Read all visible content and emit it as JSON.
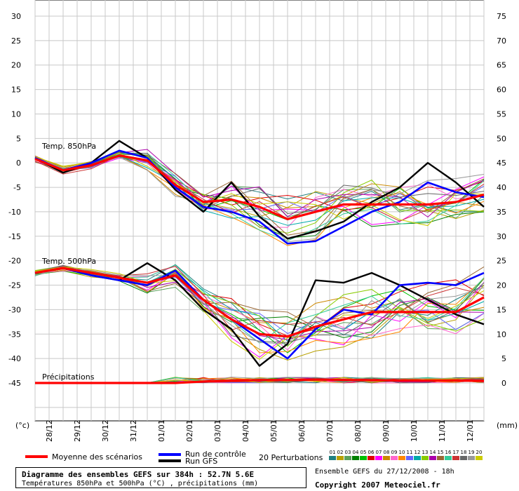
{
  "chart_data": {
    "type": "line",
    "x_labels": [
      "28/12",
      "29/12",
      "30/12",
      "31/12",
      "01/01",
      "02/01",
      "03/01",
      "04/01",
      "05/01",
      "06/01",
      "07/01",
      "08/01",
      "09/01",
      "10/01",
      "11/01",
      "12/01"
    ],
    "y_left_ticks": [
      30,
      25,
      20,
      15,
      10,
      5,
      0,
      -5,
      -10,
      -15,
      -20,
      -25,
      -30,
      -35,
      -40,
      -45
    ],
    "y_right_ticks": [
      75,
      70,
      65,
      60,
      55,
      50,
      45,
      40,
      35,
      30,
      25,
      20,
      15,
      10,
      5,
      0
    ],
    "y_left_unit": "(°c)",
    "y_right_unit": "(mm)",
    "section_labels": {
      "t850": "Temp. 850hPa",
      "t500": "Temp. 500hPa",
      "precip": "Précipitations"
    },
    "series": [
      {
        "name": "Moyenne des scénarios",
        "panel": "t850",
        "x": [
          0,
          1,
          2,
          3,
          4,
          5,
          6,
          7,
          8,
          9,
          10,
          11,
          12,
          13,
          14,
          15,
          16
        ],
        "values": [
          0.8,
          -1.5,
          -0.5,
          1.5,
          0.5,
          -4.5,
          -8,
          -7.5,
          -9,
          -11.5,
          -10,
          -8.5,
          -8.5,
          -8.5,
          -8.5,
          -8,
          -6.5
        ]
      },
      {
        "name": "Run de contrôle",
        "panel": "t850",
        "x": [
          0,
          1,
          2,
          3,
          4,
          5,
          6,
          7,
          8,
          9,
          10,
          11,
          12,
          13,
          14,
          15,
          16
        ],
        "values": [
          1,
          -1.5,
          0,
          2.5,
          1,
          -5,
          -9,
          -10,
          -12,
          -16.5,
          -16,
          -13,
          -10,
          -8,
          -4,
          -6,
          -7
        ]
      },
      {
        "name": "Run GFS",
        "panel": "t850",
        "x": [
          0,
          1,
          2,
          3,
          4,
          5,
          6,
          7,
          8,
          9,
          10,
          11,
          12,
          13,
          14,
          15,
          16
        ],
        "values": [
          1,
          -2,
          0,
          4.5,
          1,
          -5.5,
          -10,
          -4,
          -11,
          -15.5,
          -14,
          -12,
          -8,
          -5,
          0,
          -4,
          -9
        ]
      },
      {
        "name": "Moyenne des scénarios",
        "panel": "t500",
        "x": [
          0,
          1,
          2,
          3,
          4,
          5,
          6,
          7,
          8,
          9,
          10,
          11,
          12,
          13,
          14,
          15,
          16
        ],
        "values": [
          -22.5,
          -21.5,
          -22.5,
          -23.5,
          -24.5,
          -23,
          -28,
          -32,
          -35,
          -35.5,
          -33.5,
          -32,
          -30.5,
          -30.5,
          -30.5,
          -30.5,
          -27.5
        ]
      },
      {
        "name": "Run de contrôle",
        "panel": "t500",
        "x": [
          0,
          1,
          2,
          3,
          4,
          5,
          6,
          7,
          8,
          9,
          10,
          11,
          12,
          13,
          14,
          15,
          16
        ],
        "values": [
          -22.5,
          -21.5,
          -23,
          -24,
          -25,
          -22,
          -28,
          -32,
          -36,
          -40,
          -34,
          -30,
          -31,
          -25,
          -24.5,
          -25,
          -22.5
        ]
      },
      {
        "name": "Run GFS",
        "panel": "t500",
        "x": [
          0,
          1,
          2,
          3,
          4,
          5,
          6,
          7,
          8,
          9,
          10,
          11,
          12,
          13,
          14,
          15,
          16
        ],
        "values": [
          -22.5,
          -21.5,
          -23,
          -24,
          -20.5,
          -24,
          -30,
          -34,
          -41.5,
          -37,
          -24,
          -24.5,
          -22.5,
          -25,
          -28,
          -31,
          -33
        ]
      },
      {
        "name": "Moyenne des scénarios",
        "panel": "precip",
        "x": [
          0,
          1,
          2,
          3,
          4,
          5,
          6,
          7,
          8,
          9,
          10,
          11,
          12,
          13,
          14,
          15,
          16
        ],
        "values": [
          0,
          0,
          0,
          0,
          0,
          0,
          0.3,
          0.5,
          0.6,
          0.6,
          0.7,
          0.6,
          0.6,
          0.5,
          0.5,
          0.5,
          0.4
        ]
      }
    ],
    "perturbations": {
      "label": "20 Perturbations",
      "count": 20,
      "colors": [
        "#1f7f7f",
        "#b8a000",
        "#5aa05a",
        "#008000",
        "#00c000",
        "#e00000",
        "#ff00ff",
        "#cc8800",
        "#ff66cc",
        "#ff8800",
        "#6666ff",
        "#00aaaa",
        "#88cc00",
        "#aa00aa",
        "#996633",
        "#33cc99",
        "#cc3333",
        "#666666",
        "#999999",
        "#cccc00"
      ],
      "numbers": [
        "01",
        "02",
        "03",
        "04",
        "05",
        "06",
        "07",
        "08",
        "09",
        "10",
        "11",
        "12",
        "13",
        "14",
        "15",
        "16",
        "17",
        "18",
        "19",
        "20"
      ]
    },
    "legend": {
      "mean": {
        "label": "Moyenne des scénarios",
        "color": "#ff0000"
      },
      "control": {
        "label": "Run de contrôle",
        "color": "#0000ff"
      },
      "gfs": {
        "label": "Run GFS",
        "color": "#000000"
      }
    },
    "grid": true
  },
  "info": {
    "title": "Diagramme des ensembles GEFS sur 384h : 52.7N 5.6E",
    "subtitle": "Températures 850hPa et 500hPa (°C) , précipitations (mm)",
    "run": "Ensemble GEFS du 27/12/2008 - 18h",
    "copyright": "Copyright 2007 Meteociel.fr"
  }
}
